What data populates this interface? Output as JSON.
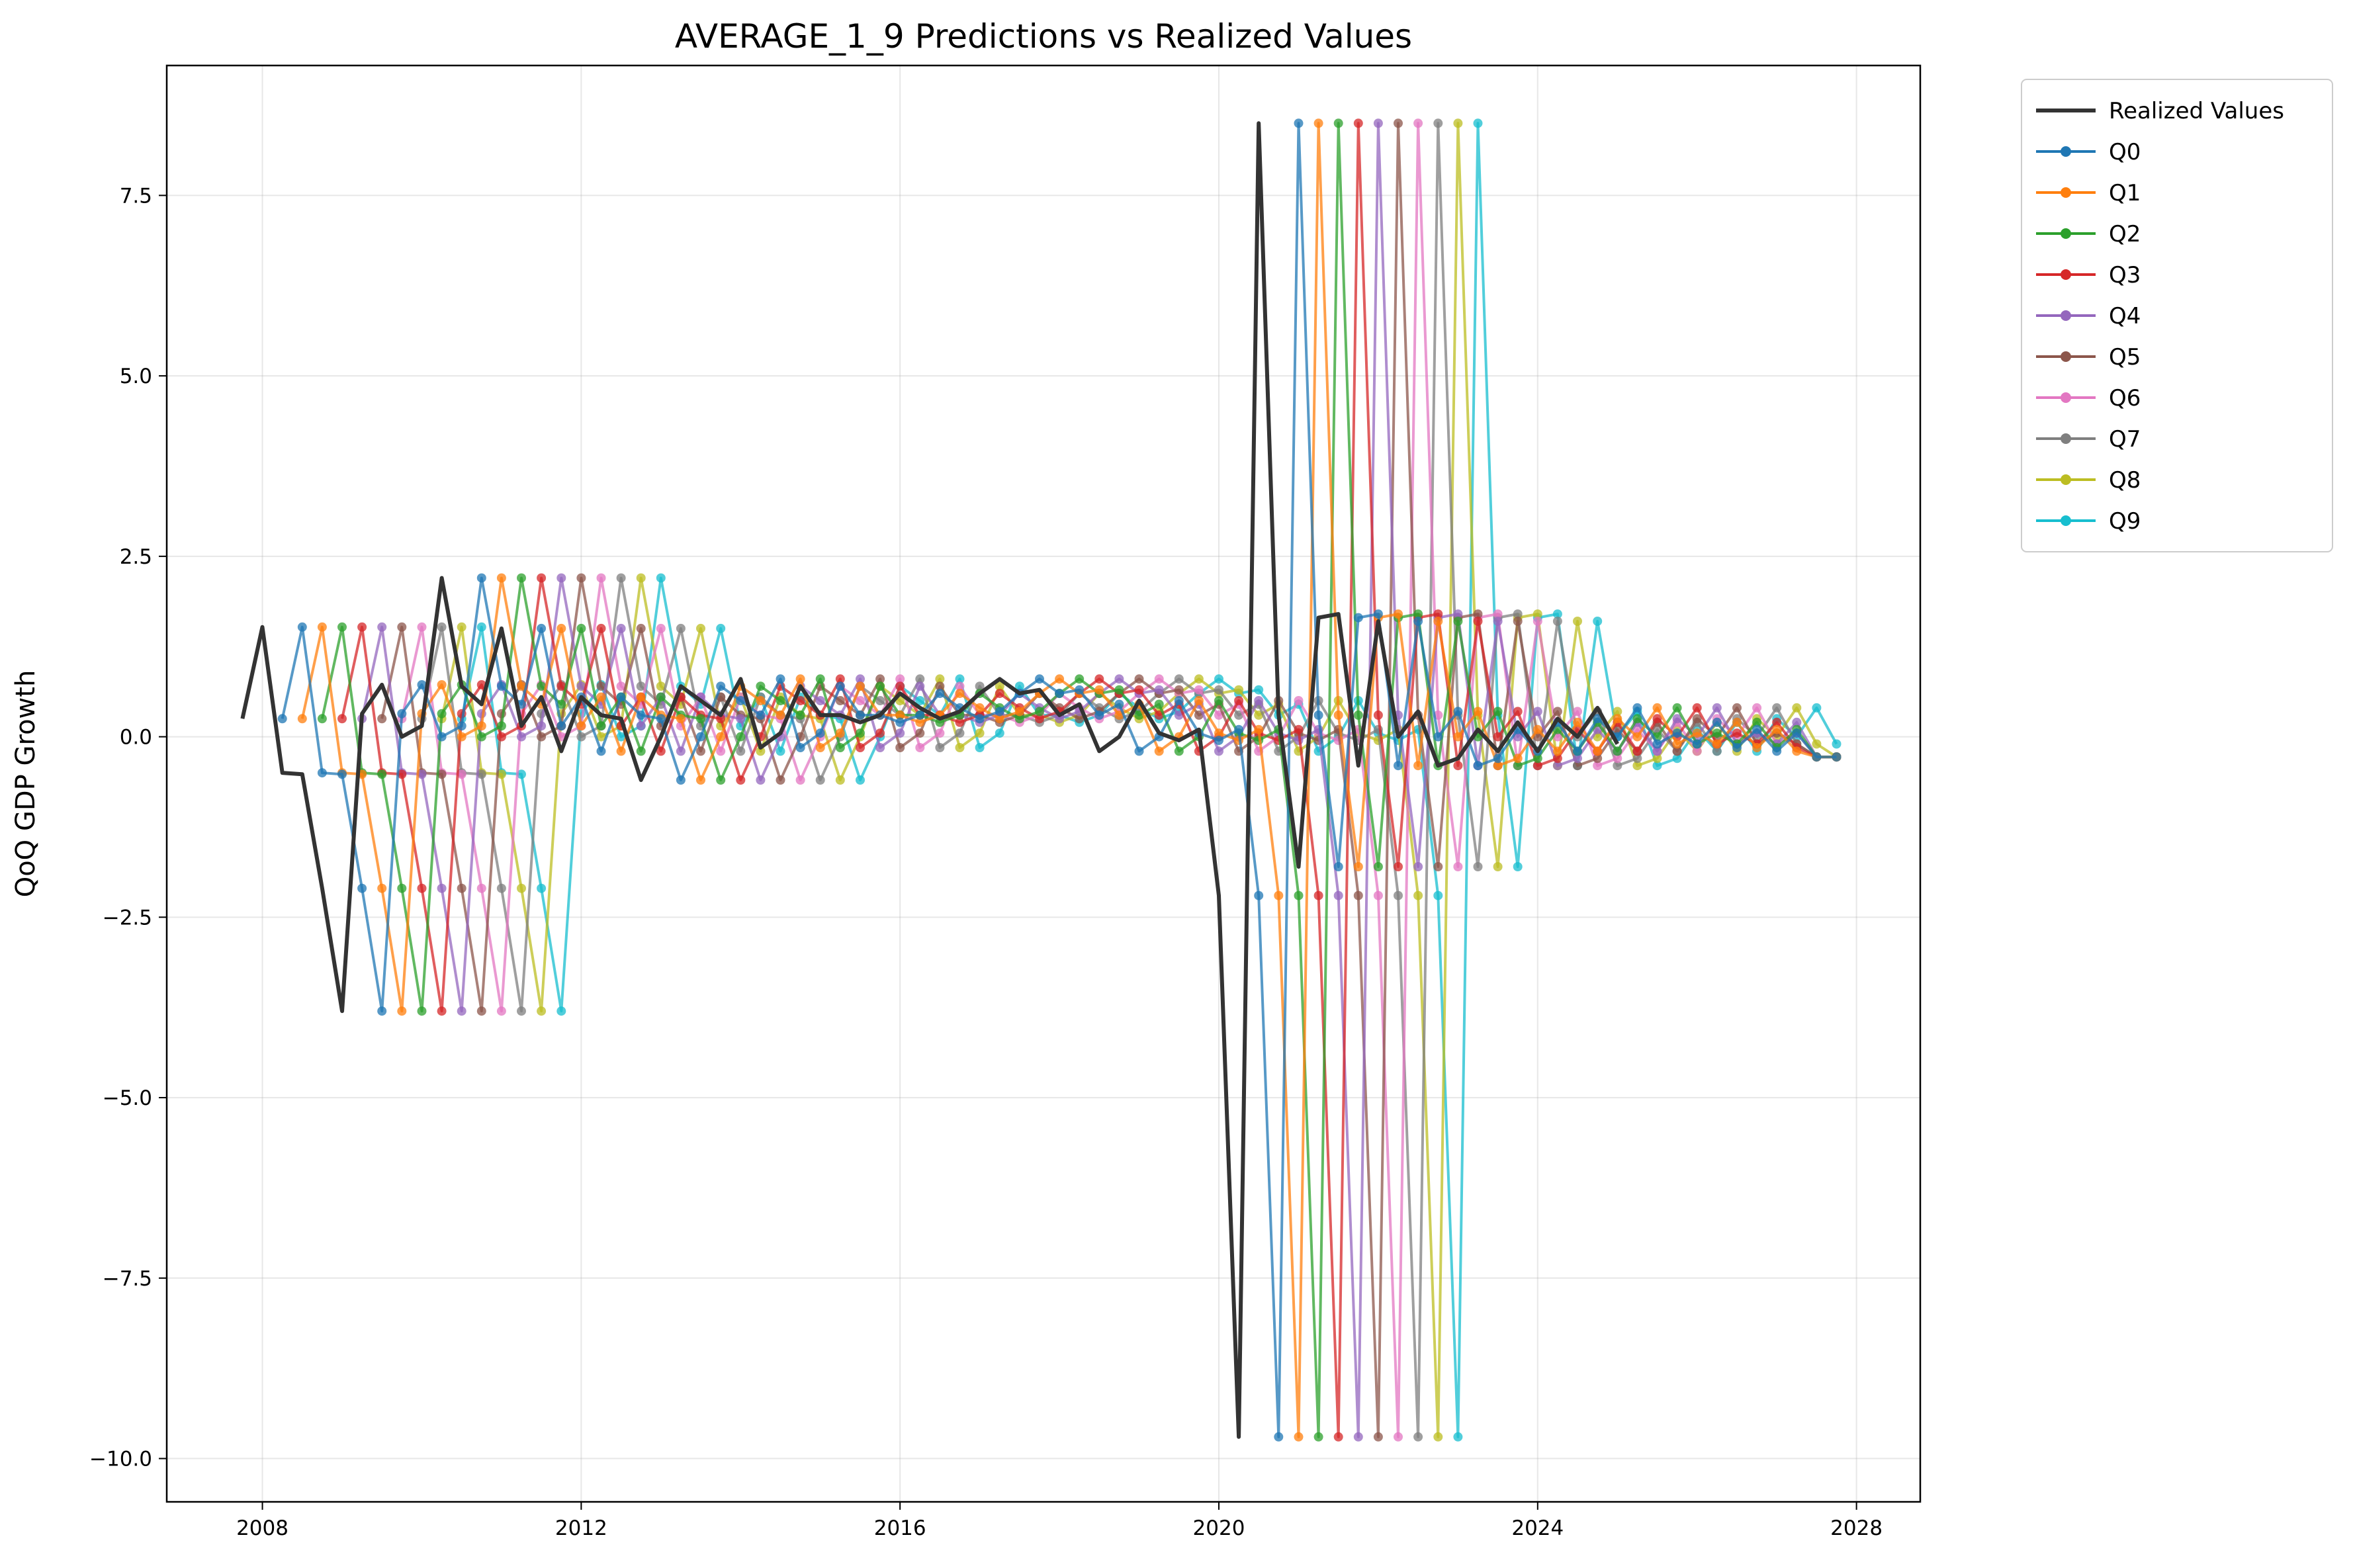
{
  "chart_data": {
    "type": "line",
    "title": "AVERAGE_1_9 Predictions vs Realized Values",
    "xlabel": "",
    "ylabel": "QoQ GDP Growth",
    "xlim": [
      2006.8,
      2028.8
    ],
    "ylim": [
      -10.6,
      9.3
    ],
    "x_ticks": [
      2008,
      2012,
      2016,
      2020,
      2024,
      2028
    ],
    "x_tick_labels": [
      "2008",
      "2012",
      "2016",
      "2020",
      "2024",
      "2028"
    ],
    "y_ticks": [
      7.5,
      5.0,
      2.5,
      0.0,
      -2.5,
      -5.0,
      -7.5,
      -10.0
    ],
    "y_tick_labels": [
      "7.5",
      "5.0",
      "2.5",
      "0.0",
      "−2.5",
      "−5.0",
      "−7.5",
      "−10.0"
    ],
    "grid": true,
    "legend_position": "outside-top-right",
    "realized": {
      "name": "Realized Values",
      "color": "#333333",
      "x": [
        "2007-Q4",
        "2008-Q1",
        "2008-Q2",
        "2008-Q3",
        "2008-Q4",
        "2009-Q1",
        "2009-Q2",
        "2009-Q3",
        "2009-Q4",
        "2010-Q1",
        "2010-Q2",
        "2010-Q3",
        "2010-Q4",
        "2011-Q1",
        "2011-Q2",
        "2011-Q3",
        "2011-Q4",
        "2012-Q1",
        "2012-Q2",
        "2012-Q3",
        "2012-Q4",
        "2013-Q1",
        "2013-Q2",
        "2013-Q3",
        "2013-Q4",
        "2014-Q1",
        "2014-Q2",
        "2014-Q3",
        "2014-Q4",
        "2015-Q1",
        "2015-Q2",
        "2015-Q3",
        "2015-Q4",
        "2016-Q1",
        "2016-Q2",
        "2016-Q3",
        "2016-Q4",
        "2017-Q1",
        "2017-Q2",
        "2017-Q3",
        "2017-Q4",
        "2018-Q1",
        "2018-Q2",
        "2018-Q3",
        "2018-Q4",
        "2019-Q1",
        "2019-Q2",
        "2019-Q3",
        "2019-Q4",
        "2020-Q1",
        "2020-Q2",
        "2020-Q3",
        "2020-Q4",
        "2021-Q1",
        "2021-Q2",
        "2021-Q3",
        "2021-Q4",
        "2022-Q1",
        "2022-Q2",
        "2022-Q3",
        "2022-Q4",
        "2023-Q1",
        "2023-Q2",
        "2023-Q3",
        "2023-Q4",
        "2024-Q1",
        "2024-Q2",
        "2024-Q3",
        "2024-Q4",
        "2025-Q1"
      ],
      "values": [
        0.25,
        1.52,
        -0.5,
        -0.52,
        -2.1,
        -3.8,
        0.32,
        0.72,
        0.0,
        0.15,
        2.2,
        0.7,
        0.45,
        1.5,
        0.15,
        0.55,
        -0.2,
        0.55,
        0.3,
        0.25,
        -0.6,
        0.0,
        0.7,
        0.5,
        0.3,
        0.8,
        -0.15,
        0.05,
        0.7,
        0.3,
        0.3,
        0.2,
        0.3,
        0.6,
        0.4,
        0.25,
        0.35,
        0.6,
        0.8,
        0.6,
        0.65,
        0.3,
        0.45,
        -0.2,
        0.0,
        0.5,
        0.05,
        -0.05,
        0.1,
        -2.2,
        -9.7,
        8.5,
        0.3,
        -1.8,
        1.65,
        1.7,
        -0.4,
        1.6,
        0.0,
        0.35,
        -0.4,
        -0.3,
        0.1,
        -0.2,
        0.2,
        -0.2,
        0.25,
        0.0,
        0.4,
        -0.1
      ]
    },
    "series_colors": [
      "#1f77b4",
      "#ff7f0e",
      "#2ca02c",
      "#d62728",
      "#9467bd",
      "#8c564b",
      "#e377c2",
      "#7f7f7f",
      "#bcbd22",
      "#17becf"
    ],
    "series_names": [
      "Q0",
      "Q1",
      "Q2",
      "Q3",
      "Q4",
      "Q5",
      "Q6",
      "Q7",
      "Q8",
      "Q9"
    ],
    "series_note_shift_quarters": [
      1,
      2,
      3,
      4,
      5,
      6,
      7,
      8,
      9,
      10
    ],
    "series_last_value": [
      -0.28,
      -0.28,
      -0.28,
      -0.28,
      -0.28,
      -0.28,
      -0.28,
      -0.28,
      -0.28,
      -0.28
    ]
  }
}
